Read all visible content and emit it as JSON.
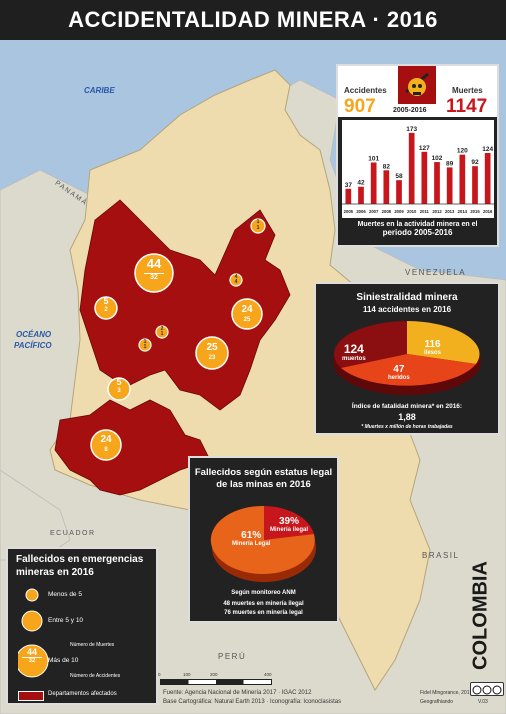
{
  "title": "ACCIDENTALIDAD MINERA · 2016",
  "labels": {
    "caribe": "CARIBE",
    "panama": "PANAMÁ",
    "venezuela": "VENEZUELA",
    "oceano": "OCÉANO",
    "pacifico": "PACÍFICO",
    "ecuador": "ECUADOR",
    "brasil": "BRASIL",
    "peru": "PERÚ",
    "colombia": "COLOMBIA"
  },
  "stats_panel": {
    "accidentes_label": "Accidentes",
    "accidentes_value": "907",
    "muertes_label": "Muertes",
    "muertes_value": "1147",
    "period": "2005-2016",
    "caption_line1": "Muertes en la actividad minera en el",
    "caption_line2": "periodo 2005-2016"
  },
  "chart_data": {
    "type": "bar",
    "categories": [
      "2005",
      "2006",
      "2007",
      "2008",
      "2009",
      "2010",
      "2011",
      "2012",
      "2013",
      "2014",
      "2015",
      "2016"
    ],
    "values": [
      37,
      42,
      101,
      82,
      58,
      173,
      127,
      102,
      89,
      120,
      92,
      124
    ],
    "ylim": [
      0,
      180
    ],
    "color": "#c8161d"
  },
  "siniestralidad": {
    "title": "Siniestralidad minera",
    "subtitle": "114 accidentes en 2016",
    "slices": [
      {
        "value": "124",
        "label": "muertos",
        "color": "#8b0e10"
      },
      {
        "value": "116",
        "label": "ilesos",
        "color": "#f2b01e"
      },
      {
        "value": "47",
        "label": "heridos",
        "color": "#e8441a"
      }
    ],
    "indice_label": "Índice de fatalidad minera* en 2016:",
    "indice_value": "1,88",
    "note": "* Muertes x millón de horas trabajadas"
  },
  "fallecidos_estatus": {
    "title_line1": "Fallecidos según estatus legal",
    "title_line2": "de las minas en 2016",
    "legal_pct": "61%",
    "legal_label": "Minería Legal",
    "ilegal_pct": "39%",
    "ilegal_label": "Minería ilegal",
    "monitor_label": "Según monitoreo ANM",
    "ilegal_deaths": "48 muertes en minería ilegal",
    "legal_deaths": "76 muertes en minería legal"
  },
  "legend": {
    "title_line1": "Fallecidos en emergencias",
    "title_line2": "mineras en 2016",
    "item1": "Menos de 5",
    "item2": "Entre 5 y 10",
    "item3": "Más de 10",
    "sample_top": "44",
    "sample_bottom": "32",
    "muertes_note": "Número de Muertes",
    "accidentes_note": "Número de Accidentes",
    "departamentos": "Departamentos afectados"
  },
  "bubbles": [
    {
      "top": "44",
      "bottom": "32"
    },
    {
      "top": "5",
      "bottom": "2"
    },
    {
      "top": "24",
      "bottom": "25"
    },
    {
      "top": "25",
      "bottom": "23"
    },
    {
      "top": "5",
      "bottom": "3"
    },
    {
      "top": "24",
      "bottom": "8"
    },
    {
      "top": "1",
      "bottom": "1"
    },
    {
      "top": "2",
      "bottom": "1"
    },
    {
      "top": "1",
      "bottom": "1"
    },
    {
      "top": "4",
      "bottom": "4"
    }
  ],
  "credits": {
    "source1": "Fuente: Agencia Nacional de Minería 2017 · IGAC 2012",
    "source2": "Base Cartográfica: Natural Earth 2013 · Iconografía: Iconoclasistas",
    "author1": "Fidel Mingorance, 2017",
    "author2": "Geografhiando",
    "version": "V.03",
    "scale_0": "0",
    "scale_1": "100",
    "scale_2": "200",
    "scale_3": "400"
  },
  "colors": {
    "affected": "#a50f10",
    "land": "#efdcae",
    "sea": "#a9c5e0",
    "orange": "#f7a51b"
  }
}
